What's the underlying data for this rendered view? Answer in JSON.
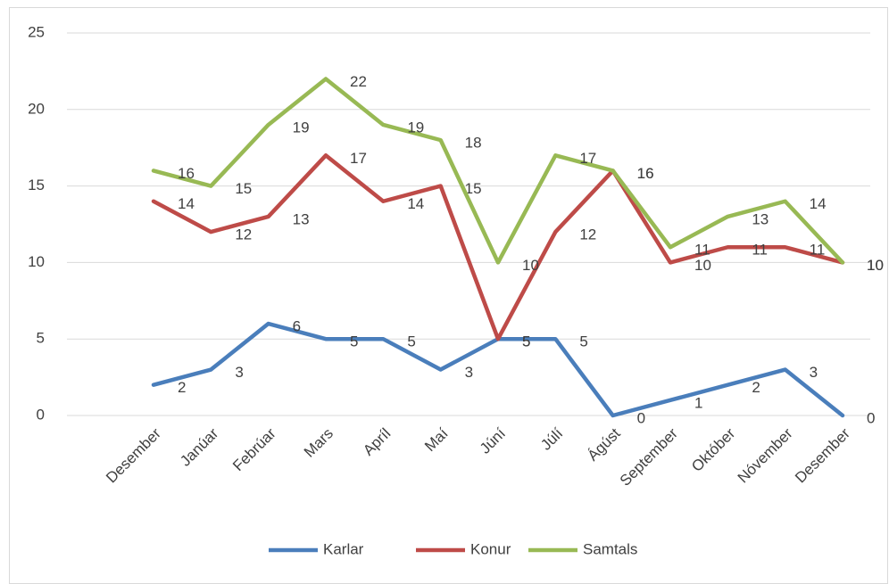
{
  "chart_data": {
    "type": "line",
    "categories": [
      "Desember",
      "Janúar",
      "Febrúar",
      "Mars",
      "Apríl",
      "Maí",
      "Júní",
      "Júlí",
      "Ágúst",
      "September",
      "Október",
      "Nóvember",
      "Desember"
    ],
    "series": [
      {
        "name": "Karlar",
        "color": "#4a7ebb",
        "values": [
          2,
          3,
          6,
          5,
          5,
          3,
          5,
          5,
          0,
          1,
          2,
          3,
          0
        ]
      },
      {
        "name": "Konur",
        "color": "#be4b48",
        "values": [
          14,
          12,
          13,
          17,
          14,
          15,
          5,
          12,
          16,
          10,
          11,
          11,
          10
        ]
      },
      {
        "name": "Samtals",
        "color": "#98b954",
        "values": [
          16,
          15,
          19,
          22,
          19,
          18,
          10,
          17,
          16,
          11,
          13,
          14,
          10
        ]
      }
    ],
    "ylim": [
      0,
      25
    ],
    "yticks": [
      0,
      5,
      10,
      15,
      20,
      25
    ],
    "grid": true,
    "legend": "bottom"
  }
}
